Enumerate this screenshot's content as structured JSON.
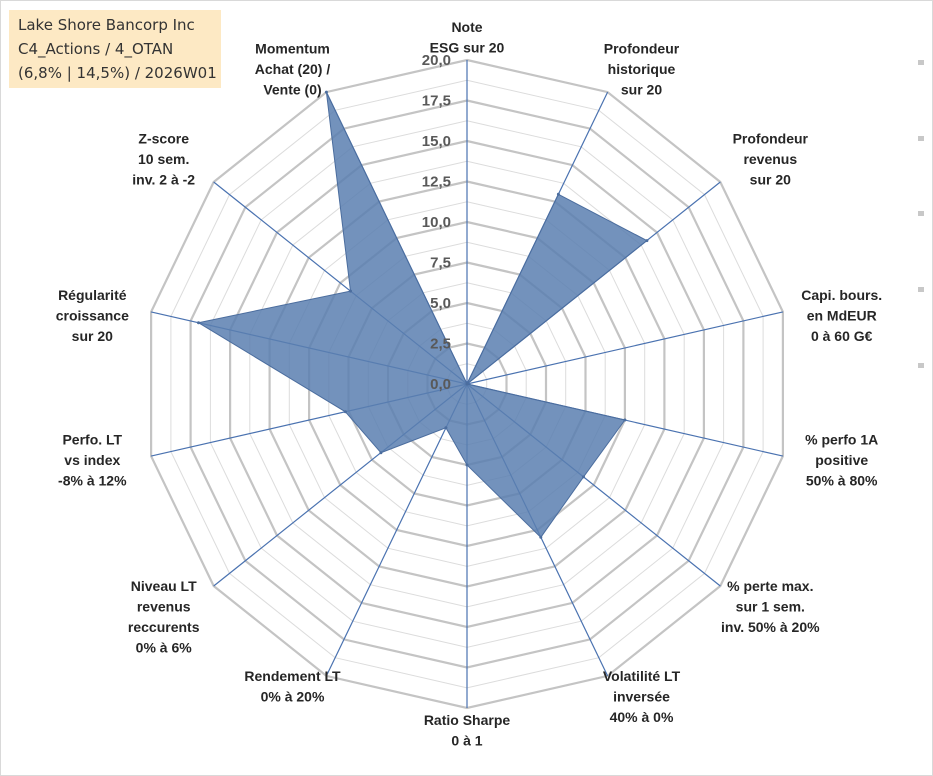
{
  "info": {
    "line1": "Lake Shore Bancorp Inc",
    "line2": "C4_Actions / 4_OTAN",
    "line3": "(6,8% | 14,5%) / 2026W01"
  },
  "chart_data": {
    "type": "radar",
    "title": "",
    "rmin": 0,
    "rmax": 20,
    "tick_labels": [
      "0,0",
      "2,5",
      "5,0",
      "7,5",
      "10,0",
      "12,5",
      "15,0",
      "17,5",
      "20,0"
    ],
    "grid_rings": [
      2.5,
      5,
      7.5,
      10,
      12.5,
      15,
      17.5,
      20
    ],
    "minor_rings": [
      1.25,
      3.75,
      6.25,
      8.75,
      11.25,
      13.75,
      16.25,
      18.75
    ],
    "axes": [
      {
        "label": [
          "Note",
          "ESG sur 20"
        ],
        "value": 0
      },
      {
        "label": [
          "Profondeur",
          "historique",
          "sur 20"
        ],
        "value": 13
      },
      {
        "label": [
          "Profondeur",
          "revenus",
          "sur 20"
        ],
        "value": 14.2
      },
      {
        "label": [
          "Capi. bours.",
          "en MdEUR",
          "0 à 60 G€"
        ],
        "value": 0
      },
      {
        "label": [
          "% perfo 1A",
          "positive",
          "50% à 80%"
        ],
        "value": 10
      },
      {
        "label": [
          "% perte max.",
          "sur 1 sem.",
          "inv. 50% à 20%"
        ],
        "value": 9.2
      },
      {
        "label": [
          "Volatilité LT",
          "inversée",
          "40% à 0%"
        ],
        "value": 10.5
      },
      {
        "label": [
          "Ratio Sharpe",
          "0 à 1"
        ],
        "value": 5
      },
      {
        "label": [
          "Rendement LT",
          "0% à 20%"
        ],
        "value": 3
      },
      {
        "label": [
          "Niveau LT",
          "revenus",
          "reccurents",
          "0% à 6%"
        ],
        "value": 6.8
      },
      {
        "label": [
          "Perfo. LT",
          "vs index",
          "-8% à 12%"
        ],
        "value": 7.7
      },
      {
        "label": [
          "Régularité",
          "croissance",
          "sur 20"
        ],
        "value": 17
      },
      {
        "label": [
          "Z-score",
          "10 sem.",
          "inv. 2 à -2"
        ],
        "value": 9.2
      },
      {
        "label": [
          "Momentum",
          "Achat (20) /",
          "Vente (0)"
        ],
        "value": 20
      }
    ],
    "series": [
      {
        "color": "#5b7fb0"
      }
    ],
    "grid": true,
    "legend": "none"
  }
}
